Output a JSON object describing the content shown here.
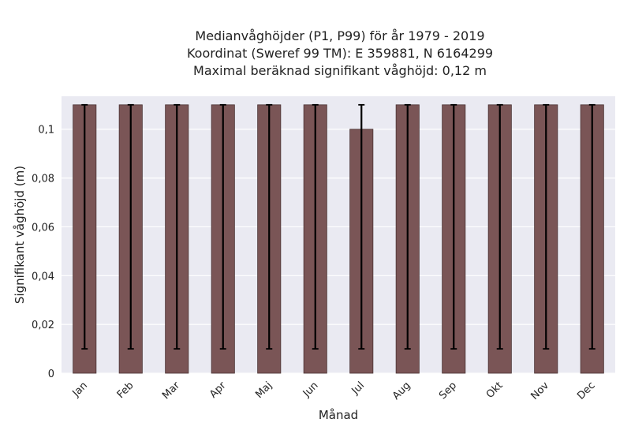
{
  "chart_data": {
    "type": "bar",
    "title_lines": [
      "Medianvåghöjder (P1, P99) för år 1979 - 2019",
      "Koordinat (Sweref 99 TM): E 359881, N 6164299",
      "Maximal beräknad signifikant våghöjd: 0,12 m"
    ],
    "xlabel": "Månad",
    "ylabel": "Signifikant våghöjd (m)",
    "categories": [
      "Jan",
      "Feb",
      "Mar",
      "Apr",
      "Maj",
      "Jun",
      "Jul",
      "Aug",
      "Sep",
      "Okt",
      "Nov",
      "Dec"
    ],
    "values": [
      0.11,
      0.11,
      0.11,
      0.11,
      0.11,
      0.11,
      0.1,
      0.11,
      0.11,
      0.11,
      0.11,
      0.11
    ],
    "error_low": [
      0.01,
      0.01,
      0.01,
      0.01,
      0.01,
      0.01,
      0.01,
      0.01,
      0.01,
      0.01,
      0.01,
      0.01
    ],
    "error_high": [
      0.11,
      0.11,
      0.11,
      0.11,
      0.11,
      0.11,
      0.11,
      0.11,
      0.11,
      0.11,
      0.11,
      0.11
    ],
    "ylim": [
      0,
      0.1135
    ],
    "yticks": [
      0,
      0.02,
      0.04,
      0.06,
      0.08,
      0.1
    ],
    "ytick_labels": [
      "0",
      "0,02",
      "0,04",
      "0,06",
      "0,08",
      "0,1"
    ],
    "grid": true,
    "bar_color": "#7a5556",
    "error_bar_color": "#000000",
    "plot_background": "#eaeaf2",
    "grid_color": "#ffffff"
  }
}
